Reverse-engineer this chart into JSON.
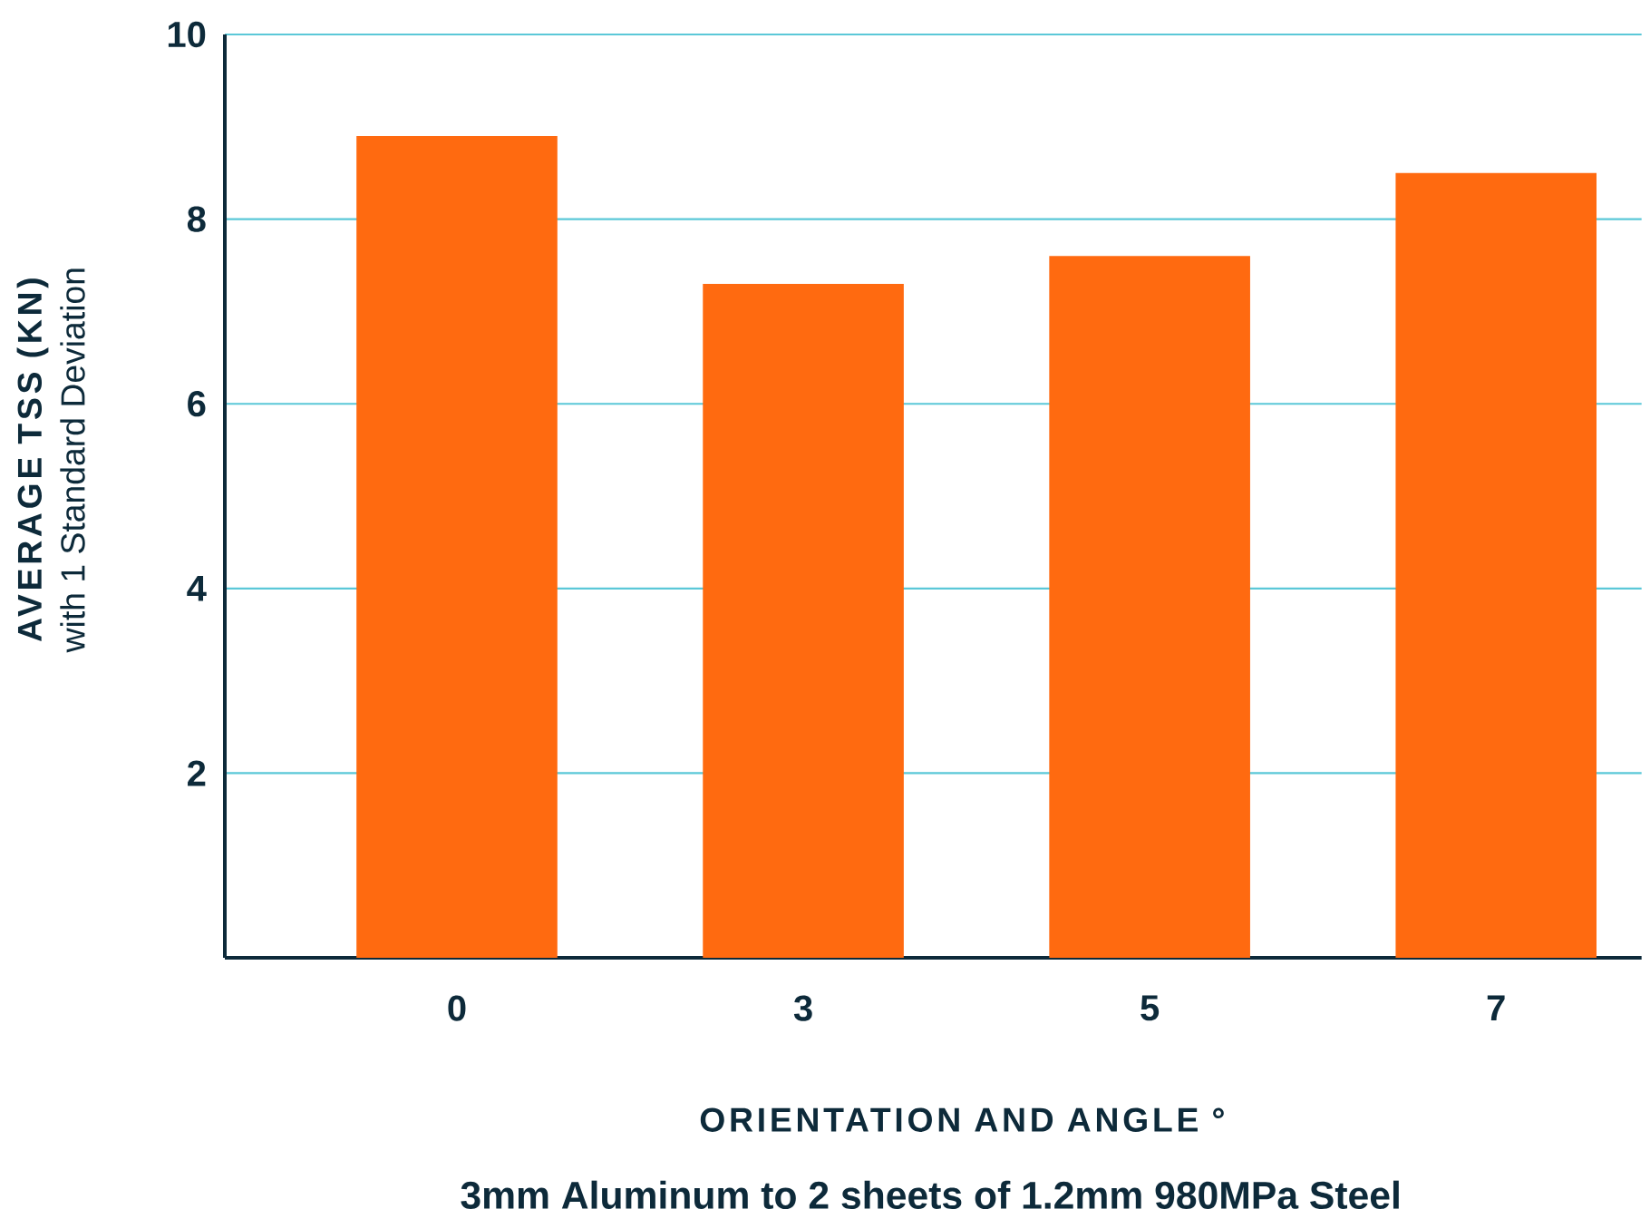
{
  "chart_data": {
    "type": "bar",
    "title": "3mm Aluminum to 2 sheets of 1.2mm 980MPa Steel",
    "xlabel": "ORIENTATION AND ANGLE °",
    "ylabel": "AVERAGE TSS (KN)",
    "annotations": [
      "with 1 Standard Deviation"
    ],
    "categories": [
      "0",
      "3",
      "5",
      "7"
    ],
    "values": [
      8.9,
      7.3,
      7.6,
      8.5
    ],
    "color": "#ff6a10",
    "ylim": [
      0,
      10
    ],
    "yticks": [
      2,
      4,
      6,
      8,
      10
    ],
    "grid": "y"
  }
}
